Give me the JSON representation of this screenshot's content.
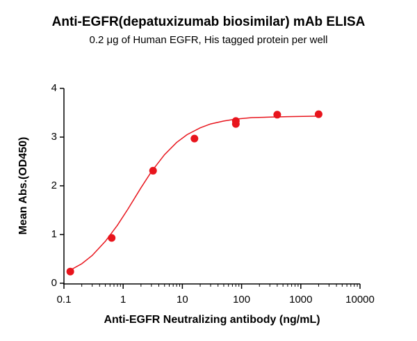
{
  "chart_data": {
    "type": "scatter",
    "title": "Anti-EGFR(depatuxizumab biosimilar) mAb ELISA",
    "subtitle": "0.2 μg of Human EGFR, His tagged protein per well",
    "x_label": "Anti-EGFR Neutralizing antibody (ng/mL)",
    "y_label": "Mean Abs.(OD450)",
    "xscale": "log",
    "xlim": [
      0.1,
      10000
    ],
    "xticks": [
      0.1,
      1,
      10,
      100,
      1000,
      10000
    ],
    "ylim": [
      0,
      4
    ],
    "yticks": [
      0,
      1,
      2,
      3,
      4
    ],
    "series": [
      {
        "color": "#e8141c",
        "x": [
          0.128,
          0.64,
          3.2,
          16,
          80,
          80,
          400,
          2000
        ],
        "values": [
          0.24,
          0.93,
          2.31,
          2.97,
          3.27,
          3.33,
          3.46,
          3.47
        ]
      }
    ],
    "curve": {
      "color": "#e8141c",
      "x": [
        0.128,
        0.2,
        0.3,
        0.5,
        0.8,
        1.2,
        2,
        3,
        5,
        8,
        12,
        20,
        30,
        50,
        80,
        150,
        300,
        600,
        2000
      ],
      "values": [
        0.27,
        0.4,
        0.57,
        0.86,
        1.19,
        1.52,
        1.96,
        2.29,
        2.64,
        2.89,
        3.05,
        3.19,
        3.27,
        3.33,
        3.37,
        3.4,
        3.41,
        3.42,
        3.43
      ]
    }
  }
}
